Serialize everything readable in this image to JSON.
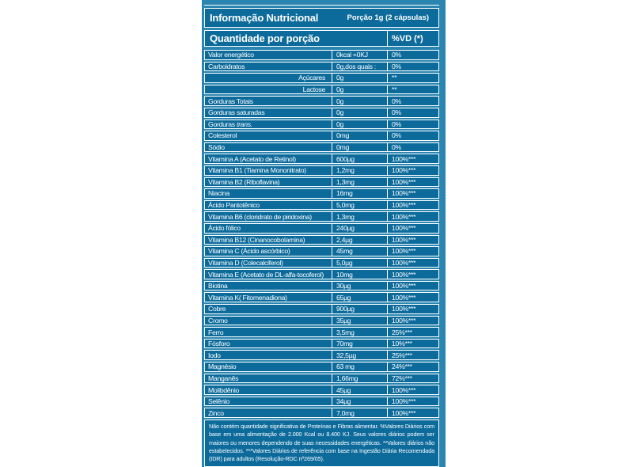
{
  "colors": {
    "panel_bg": "#2a86b1",
    "box_fill": "#0d6b9c",
    "border": "#ffffff",
    "text": "#ffffff"
  },
  "header": {
    "title": "Informação Nutricional",
    "portion": "Porção 1g (2 cápsulas)",
    "quantity_heading": "Quantidade por porção",
    "vd_heading": "%VD (*)"
  },
  "rows": [
    {
      "label": "Valor energético",
      "value": "0kcal =0KJ",
      "vd": "0%"
    },
    {
      "label": "Carboidratos",
      "value": "0g,dos quais :",
      "vd": "0%"
    },
    {
      "label": "Açúcares",
      "value": "0g",
      "vd": "**",
      "align": "right"
    },
    {
      "label": "Lactose",
      "value": "0g",
      "vd": "**",
      "align": "right"
    },
    {
      "label": "Gorduras Totais",
      "value": "0g",
      "vd": "0%"
    },
    {
      "label": "Gorduras saturadas",
      "value": "0g",
      "vd": "0%"
    },
    {
      "label": "Gorduras",
      "label_italic": "trans.",
      "value": "0g",
      "vd": "0%"
    },
    {
      "label": "Colesterol",
      "value": "0mg",
      "vd": "0%"
    },
    {
      "label": "Sódio",
      "value": "0mg",
      "vd": "0%"
    },
    {
      "label": "Vitamina A (Acetato de Retinol)",
      "value": "600µg",
      "vd": "100%***"
    },
    {
      "label": "Vitamina B1 (Tiamina Mononitrato)",
      "value": "1,2mg",
      "vd": "100%***"
    },
    {
      "label": "Vitamina B2 (Riboflavina)",
      "value": "1,3mg",
      "vd": "100%***"
    },
    {
      "label": "Niacina",
      "value": "16mg",
      "vd": "100%***"
    },
    {
      "label": "Ácido Pantotênico",
      "value": "5,0mg",
      "vd": "100%***"
    },
    {
      "label": "Vitamina B6 (cloridrato de piridoxina)",
      "value": "1,3mg",
      "vd": "100%***"
    },
    {
      "label": "Ácido fólico",
      "value": "240µg",
      "vd": "100%***"
    },
    {
      "label": "Vitamina B12 (Cinanocobolamina)",
      "value": "2,4µg",
      "vd": "100%***"
    },
    {
      "label": "Vitamina C (Ácido ascórbico)",
      "value": "45mg",
      "vd": "100%***"
    },
    {
      "label": "Vitamina D (Colecalciferol)",
      "value": "5,0µg",
      "vd": "100%***"
    },
    {
      "label": "Vitamina E (Acetato de DL-alfa-tocoferol)",
      "value": "10mg",
      "vd": "100%***"
    },
    {
      "label": "Biotina",
      "value": "30µg",
      "vd": "100%***"
    },
    {
      "label": "Vitamina K( Fitomenadiona)",
      "value": "65µg",
      "vd": "100%***"
    },
    {
      "label": "Cobre",
      "value": "900µg",
      "vd": "100%***"
    },
    {
      "label": "Cromo",
      "value": "35µg",
      "vd": "100%***"
    },
    {
      "label": "Ferro",
      "value": "3,5mg",
      "vd": "25%***"
    },
    {
      "label": "Fósforo",
      "value": "70mg",
      "vd": "10%***"
    },
    {
      "label": "Iodo",
      "value": "32,5µg",
      "vd": "25%***"
    },
    {
      "label": "Magnésio",
      "value": "63 mg",
      "vd": "24%***"
    },
    {
      "label": "Manganês",
      "value": "1,66mg",
      "vd": "72%***"
    },
    {
      "label": "Molibdênio",
      "value": "45µg",
      "vd": "100%***"
    },
    {
      "label": "Selênio",
      "value": "34µg",
      "vd": "100%***"
    },
    {
      "label": "Zinco",
      "value": "7,0mg",
      "vd": "100%***"
    }
  ],
  "footer": "Não contém quantidade significativa de Proteínas e Fibras alimentar. %Valores Diários com base em uma alimentação de 2.000 Kcal ou 8.400 KJ. Seus valores diários podem ser maiores ou menores dependendo de suas necessidades energéticas. **Valores diários não estabelecidos. ***Valores Diários de referência com base na Ingestão Diária Recomendada (IDR) para adultos (Resolução-RDC nº269/05)."
}
